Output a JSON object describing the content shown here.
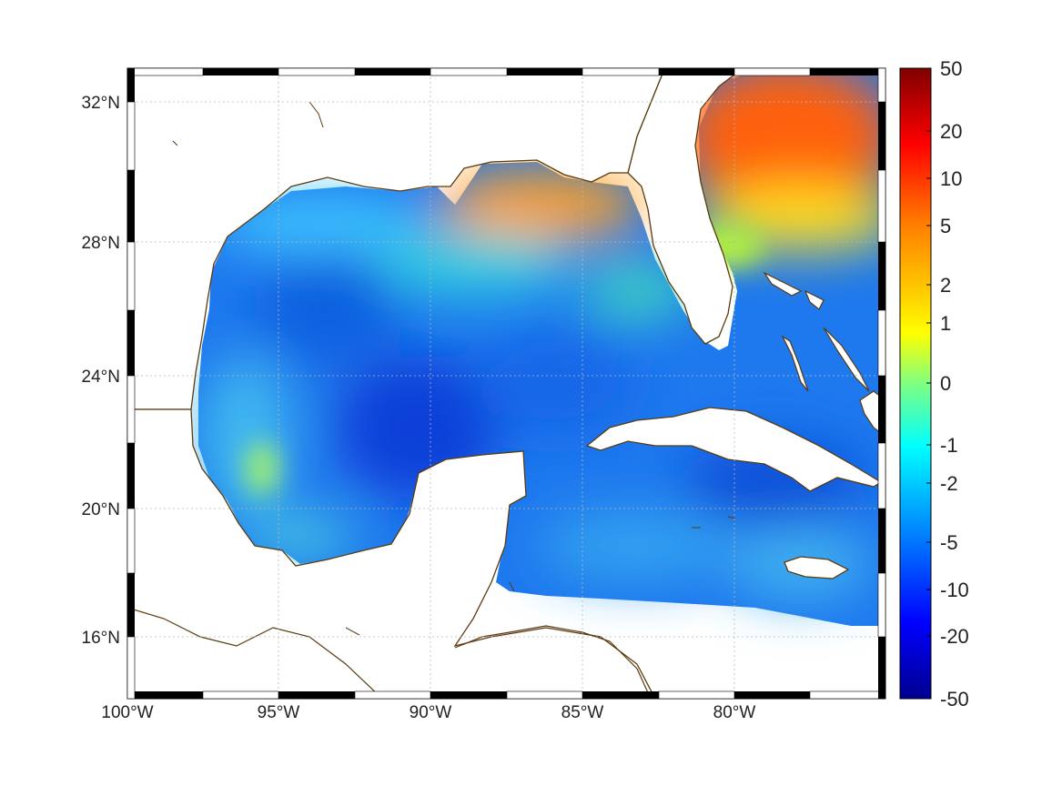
{
  "map": {
    "projection": "mercator",
    "lon_range": [
      -100,
      -75
    ],
    "lat_range": [
      14,
      33
    ],
    "lon_ticks": [
      {
        "value": -100,
        "label": "100°W"
      },
      {
        "value": -95,
        "label": "95°W"
      },
      {
        "value": -90,
        "label": "90°W"
      },
      {
        "value": -85,
        "label": "85°W"
      },
      {
        "value": -80,
        "label": "80°W"
      }
    ],
    "lat_ticks": [
      {
        "value": 16,
        "label": "16°N"
      },
      {
        "value": 20,
        "label": "20°N"
      },
      {
        "value": 24,
        "label": "24°N"
      },
      {
        "value": 28,
        "label": "28°N"
      },
      {
        "value": 32,
        "label": "32°N"
      }
    ],
    "grid": true,
    "coastline_color": "#5a3a10",
    "land_color": "#ffffff",
    "frame_style": "alternating black/white border"
  },
  "colorbar": {
    "placement": "right",
    "colormap": "jet",
    "tick_labels": [
      "50",
      "20",
      "10",
      "5",
      "2",
      "1",
      "0",
      "-1",
      "-2",
      "-5",
      "-10",
      "-20",
      "-50"
    ],
    "scale": "symmetric log",
    "colors": [
      "#7f0000",
      "#ff0000",
      "#ff8000",
      "#ffff00",
      "#80ff80",
      "#00ffff",
      "#0080ff",
      "#0000ff",
      "#00008f"
    ]
  },
  "field_features": [
    {
      "region": "northern gulf shelf (Mississippi–Florida panhandle)",
      "value": 4
    },
    {
      "region": "Atlantic off Georgia/Carolinas",
      "value": 8
    },
    {
      "region": "central Gulf of Mexico",
      "value": -6
    },
    {
      "region": "Bay of Campeche / western Gulf",
      "value": -3
    },
    {
      "region": "Cayman Sea south of Cuba",
      "value": -8
    },
    {
      "region": "western Gulf coastal shelf",
      "value": -1
    }
  ]
}
